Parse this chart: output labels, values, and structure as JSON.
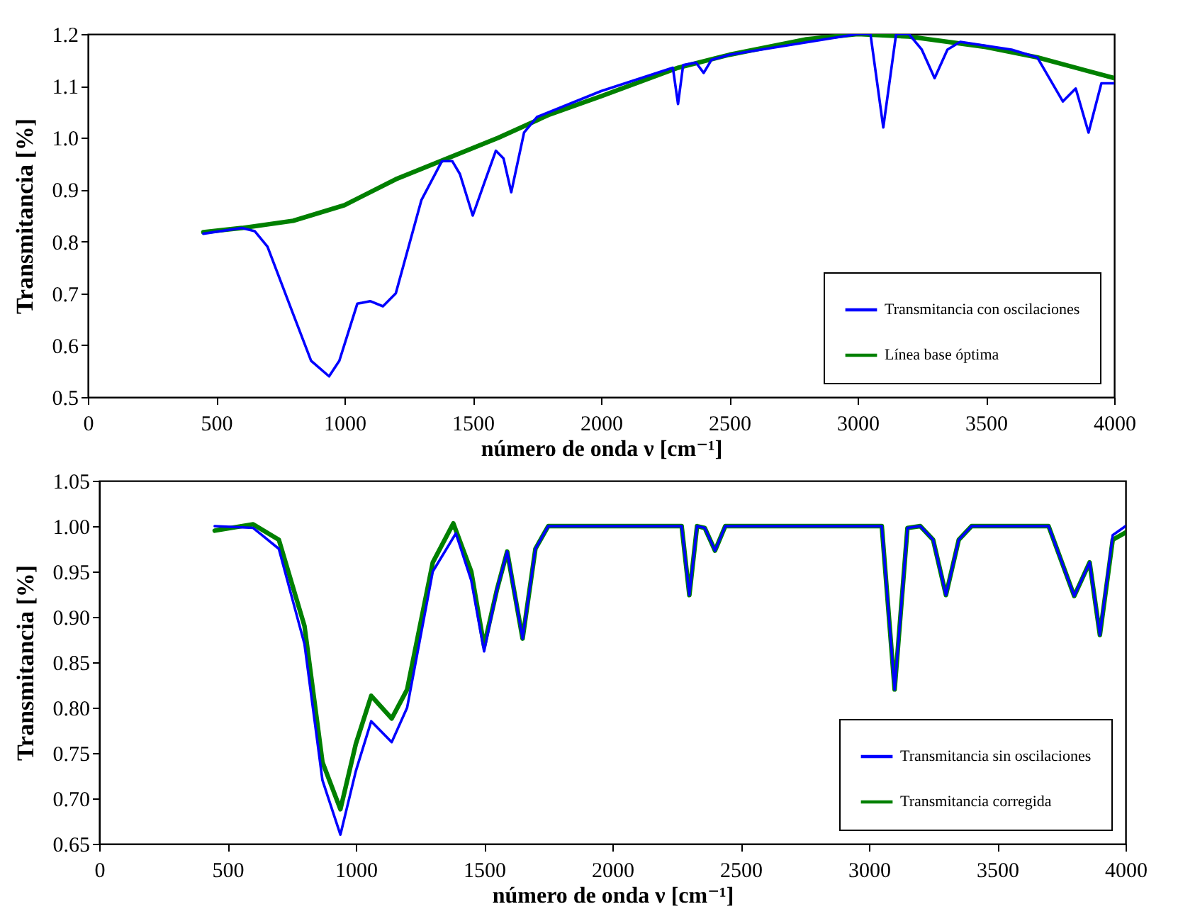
{
  "chart_data": [
    {
      "type": "line",
      "xlabel": "número de onda    ν   [cm⁻¹]",
      "ylabel": "Transmitancia [%]",
      "xlim": [
        0,
        4000
      ],
      "xticks": [
        0,
        500,
        1000,
        1500,
        2000,
        2500,
        3000,
        3500,
        4000
      ],
      "ylim": [
        0.5,
        1.2
      ],
      "yticks": [
        0.5,
        0.6,
        0.7,
        0.8,
        0.9,
        {
          "value": 1,
          "label": "1.0"
        },
        1.1,
        1.2
      ],
      "grid": false,
      "legend": "bottom right",
      "line_style": "solid",
      "marker": "none",
      "series": [
        {
          "name": "Transmitancia con oscilaciones",
          "color": "#0000ff",
          "x": [
            450,
            600,
            650,
            700,
            800,
            870,
            940,
            980,
            1050,
            1100,
            1150,
            1200,
            1300,
            1380,
            1420,
            1450,
            1500,
            1550,
            1590,
            1620,
            1650,
            1700,
            1750,
            2000,
            2280,
            2300,
            2320,
            2370,
            2400,
            2430,
            2500,
            3000,
            3050,
            3100,
            3150,
            3200,
            3250,
            3300,
            3350,
            3400,
            3600,
            3700,
            3800,
            3850,
            3900,
            3950,
            4000
          ],
          "values": [
            0.815,
            0.826,
            0.82,
            0.79,
            0.66,
            0.57,
            0.54,
            0.57,
            0.68,
            0.685,
            0.675,
            0.7,
            0.88,
            0.955,
            0.955,
            0.93,
            0.85,
            0.92,
            0.975,
            0.96,
            0.895,
            1.01,
            1.04,
            1.09,
            1.135,
            1.065,
            1.14,
            1.145,
            1.125,
            1.15,
            1.16,
            1.2,
            1.2,
            1.02,
            1.2,
            1.2,
            1.17,
            1.115,
            1.17,
            1.185,
            1.17,
            1.155,
            1.07,
            1.095,
            1.01,
            1.105,
            1.105
          ]
        },
        {
          "name": "Línea base óptima",
          "color": "#008000",
          "x": [
            450,
            600,
            800,
            1000,
            1200,
            1400,
            1600,
            1800,
            2000,
            2300,
            2500,
            2800,
            3000,
            3200,
            3500,
            3700,
            4000
          ],
          "values": [
            0.818,
            0.826,
            0.84,
            0.87,
            0.92,
            0.96,
            1.0,
            1.045,
            1.08,
            1.135,
            1.16,
            1.19,
            1.2,
            1.195,
            1.175,
            1.155,
            1.115
          ]
        }
      ]
    },
    {
      "type": "line",
      "xlabel": "número de onda    ν   [cm⁻¹]",
      "ylabel": "Transmitancia [%]",
      "xlim": [
        0,
        4000
      ],
      "xticks": [
        0,
        500,
        1000,
        1500,
        2000,
        2500,
        3000,
        3500,
        4000
      ],
      "ylim": [
        0.65,
        1.05
      ],
      "yticks": [
        {
          "value": 0.65,
          "label": "0.65"
        },
        {
          "value": 0.7,
          "label": "0.70"
        },
        {
          "value": 0.75,
          "label": "0.75"
        },
        {
          "value": 0.8,
          "label": "0.80"
        },
        {
          "value": 0.85,
          "label": "0.85"
        },
        {
          "value": 0.9,
          "label": "0.90"
        },
        {
          "value": 0.95,
          "label": "0.95"
        },
        {
          "value": 1,
          "label": "1.00"
        },
        {
          "value": 1.05,
          "label": "1.05"
        }
      ],
      "grid": false,
      "legend": "bottom right",
      "line_style": "solid",
      "marker": "none",
      "series": [
        {
          "name": "Transmitancia sin oscilaciones",
          "color": "#0000ff",
          "x": [
            450,
            600,
            700,
            800,
            870,
            940,
            1000,
            1060,
            1140,
            1200,
            1300,
            1390,
            1450,
            1500,
            1550,
            1590,
            1650,
            1700,
            1750,
            2270,
            2300,
            2330,
            2360,
            2400,
            2440,
            3050,
            3100,
            3150,
            3200,
            3250,
            3300,
            3350,
            3400,
            3700,
            3800,
            3860,
            3900,
            3950,
            4000
          ],
          "values": [
            1.0,
            0.998,
            0.975,
            0.87,
            0.72,
            0.66,
            0.73,
            0.785,
            0.762,
            0.8,
            0.95,
            0.992,
            0.94,
            0.862,
            0.93,
            0.972,
            0.876,
            0.975,
            1.0,
            1.0,
            0.924,
            1.0,
            0.998,
            0.973,
            1.0,
            1.0,
            0.82,
            0.998,
            1.0,
            0.985,
            0.924,
            0.985,
            1.0,
            1.0,
            0.923,
            0.96,
            0.88,
            0.99,
            1.0
          ]
        },
        {
          "name": "Transmitancia corregida",
          "color": "#008000",
          "x": [
            450,
            600,
            700,
            800,
            870,
            940,
            1000,
            1060,
            1140,
            1200,
            1300,
            1380,
            1450,
            1500,
            1550,
            1590,
            1650,
            1700,
            1750,
            2270,
            2300,
            2330,
            2360,
            2400,
            2440,
            3050,
            3100,
            3150,
            3200,
            3250,
            3300,
            3350,
            3400,
            3700,
            3800,
            3860,
            3900,
            3950,
            4000
          ],
          "values": [
            0.995,
            1.002,
            0.985,
            0.89,
            0.74,
            0.688,
            0.76,
            0.813,
            0.788,
            0.82,
            0.96,
            1.003,
            0.95,
            0.868,
            0.93,
            0.972,
            0.876,
            0.975,
            1.0,
            1.0,
            0.924,
            1.0,
            0.998,
            0.973,
            1.0,
            1.0,
            0.82,
            0.998,
            1.0,
            0.985,
            0.924,
            0.985,
            1.0,
            1.0,
            0.923,
            0.96,
            0.88,
            0.985,
            0.993
          ]
        }
      ]
    }
  ]
}
